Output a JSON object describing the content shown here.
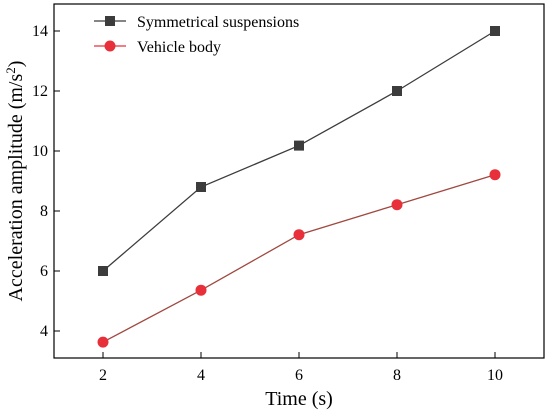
{
  "chart_data": {
    "type": "line",
    "x": [
      2,
      4,
      6,
      8,
      10
    ],
    "xlabel": "Time (s)",
    "ylabel_main": "Acceleration amplitude (m/s",
    "ylabel_sup": "2",
    "ylabel_close": ")",
    "xlim": [
      1,
      11
    ],
    "ylim": [
      3.1,
      14.9
    ],
    "xticks": [
      2,
      4,
      6,
      8,
      10
    ],
    "yticks": [
      4,
      6,
      8,
      10,
      12,
      14
    ],
    "grid": false,
    "legend_position": "top-left",
    "series": [
      {
        "name": "Symmetrical suspensions",
        "values": [
          6.0,
          8.8,
          10.18,
          12.0,
          14.0
        ],
        "color": "#3c3c3c",
        "marker": "square"
      },
      {
        "name": "Vehicle body",
        "values": [
          3.63,
          5.36,
          7.21,
          8.21,
          9.21
        ],
        "color": "#e8303a",
        "line_color": "#a0483f",
        "marker": "circle"
      }
    ]
  }
}
